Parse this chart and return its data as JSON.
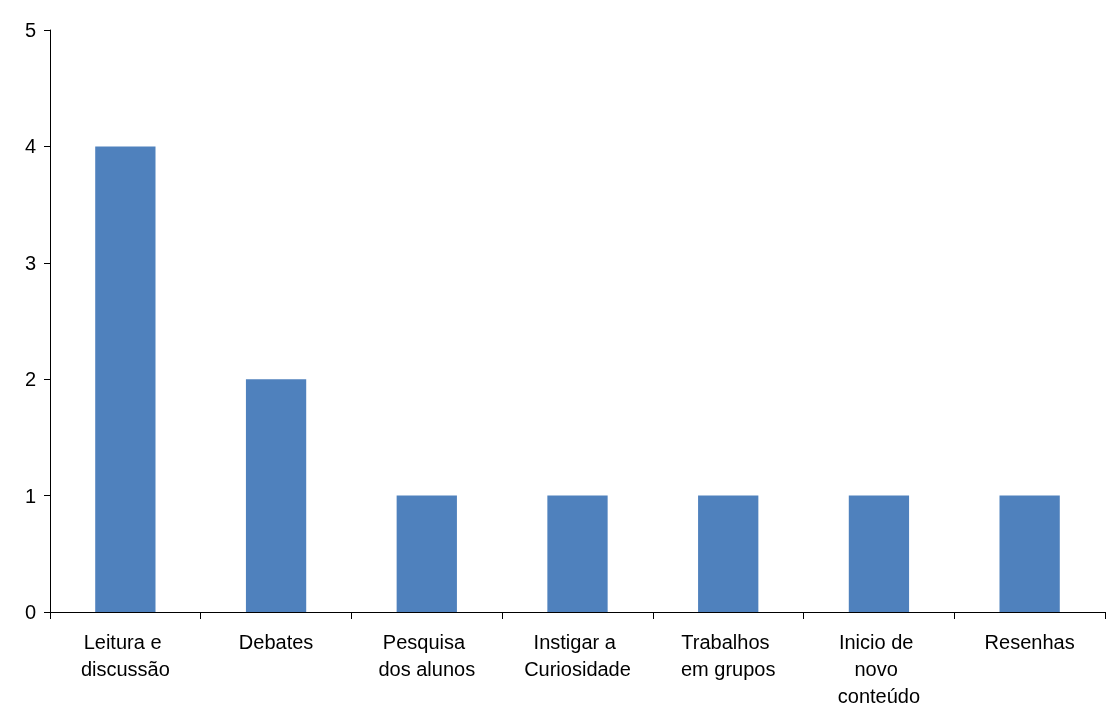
{
  "chart_data": {
    "type": "bar",
    "categories": [
      "Leitura e discussão",
      "Debates",
      "Pesquisa dos alunos",
      "Instigar a Curiosidade",
      "Trabalhos em grupos",
      "Inicio de novo conteúdo",
      "Resenhas"
    ],
    "values": [
      4,
      2,
      1,
      1,
      1,
      1,
      1
    ],
    "color": "#4f81bd",
    "ylim": [
      0,
      5
    ],
    "yticks": [
      0,
      1,
      2,
      3,
      4,
      5
    ],
    "grid": false
  }
}
